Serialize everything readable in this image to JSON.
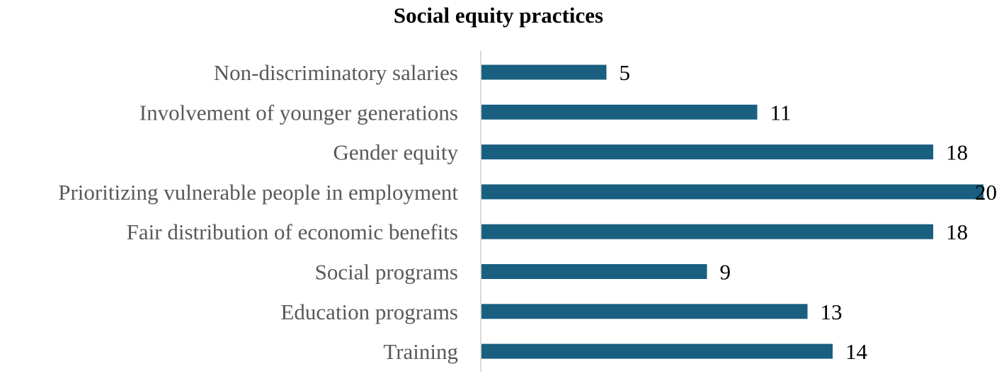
{
  "chart_data": {
    "type": "bar",
    "orientation": "horizontal",
    "title": "Social equity practices",
    "xlabel": "",
    "ylabel": "",
    "categories": [
      "Non-discriminatory salaries",
      "Involvement of younger generations",
      "Gender equity",
      "Prioritizing vulnerable people in employment",
      "Fair distribution of economic benefits",
      "Social programs",
      "Education programs",
      "Training"
    ],
    "values": [
      5,
      11,
      18,
      20,
      18,
      9,
      13,
      14
    ],
    "xlim": [
      0,
      20
    ],
    "grid": false,
    "legend": "none",
    "data_labels": true,
    "bar_color": "#195F80",
    "axis_color": "#D9D9D9"
  }
}
